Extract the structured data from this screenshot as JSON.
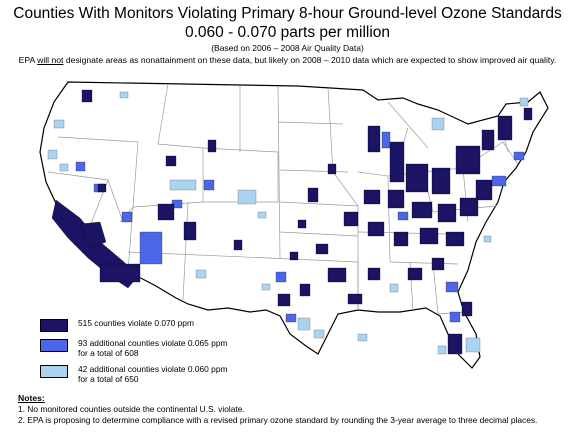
{
  "header": {
    "title": "Counties With Monitors Violating Primary 8-hour Ground-level Ozone Standards",
    "subtitle": "0.060 -  0.070 parts per million",
    "basis": "(Based on 2006 – 2008 Air Quality Data)",
    "note_prefix": "EPA ",
    "note_emphasis": "will not",
    "note_suffix": " designate areas as nonattainment on these data, but likely on 2008 – 2010 data which are expected to show improved air quality."
  },
  "colors": {
    "violate_070": "#1b1464",
    "violate_065": "#4d66e8",
    "violate_060": "#aad3ef",
    "state_border": "#9b9b9b",
    "land": "#ffffff"
  },
  "legend": {
    "items": [
      {
        "color_key": "violate_070",
        "lines": [
          "515 counties violate 0.070 ppm"
        ]
      },
      {
        "color_key": "violate_065",
        "lines": [
          "93 additional counties violate 0.065 ppm",
          "for a total of 608"
        ]
      },
      {
        "color_key": "violate_060",
        "lines": [
          "42 additional counties violate 0.060 ppm",
          "for a total of 650"
        ]
      }
    ]
  },
  "notes": {
    "title": "Notes:",
    "items": [
      "1. No monitored counties outside the continental U.S. violate.",
      "2. EPA is proposing to determine compliance with a revised primary ozone standard by rounding the 3-year average to three decimal places."
    ]
  }
}
